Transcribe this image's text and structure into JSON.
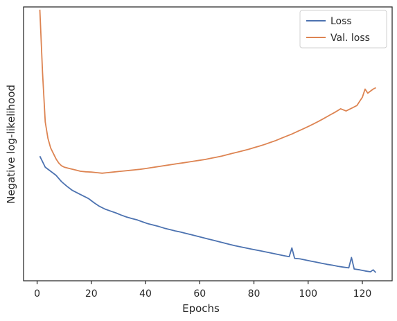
{
  "chart_data": {
    "type": "line",
    "xlabel": "Epochs",
    "ylabel": "Negative log-likelihood",
    "xlim": [
      -5,
      131
    ],
    "ylim": [
      0,
      1
    ],
    "xticks": [
      0,
      20,
      40,
      60,
      80,
      100,
      120
    ],
    "y_tick_labels_shown": false,
    "grid": false,
    "legend_position": "top-right",
    "series": [
      {
        "name": "Loss",
        "color": "#4c72b0",
        "x": [
          1,
          3,
          5,
          7,
          9,
          11,
          13,
          15,
          17,
          19,
          21,
          23,
          25,
          27,
          29,
          31,
          33,
          35,
          37,
          39,
          41,
          43,
          45,
          47,
          49,
          51,
          53,
          55,
          57,
          59,
          61,
          63,
          65,
          67,
          69,
          71,
          73,
          75,
          77,
          79,
          81,
          83,
          85,
          87,
          89,
          91,
          93,
          94,
          95,
          97,
          99,
          101,
          103,
          105,
          107,
          109,
          111,
          113,
          115,
          116,
          117,
          119,
          121,
          123,
          124,
          125
        ],
        "y": [
          0.455,
          0.415,
          0.4,
          0.385,
          0.362,
          0.345,
          0.33,
          0.32,
          0.31,
          0.3,
          0.285,
          0.272,
          0.262,
          0.255,
          0.248,
          0.24,
          0.233,
          0.227,
          0.222,
          0.215,
          0.208,
          0.203,
          0.198,
          0.192,
          0.187,
          0.182,
          0.178,
          0.173,
          0.168,
          0.163,
          0.158,
          0.153,
          0.148,
          0.143,
          0.138,
          0.133,
          0.128,
          0.124,
          0.12,
          0.116,
          0.112,
          0.108,
          0.104,
          0.1,
          0.096,
          0.092,
          0.088,
          0.12,
          0.082,
          0.08,
          0.076,
          0.072,
          0.068,
          0.064,
          0.06,
          0.057,
          0.053,
          0.05,
          0.047,
          0.085,
          0.043,
          0.04,
          0.036,
          0.033,
          0.04,
          0.03
        ]
      },
      {
        "name": "Val. loss",
        "color": "#dd8452",
        "x": [
          1,
          2,
          3,
          4,
          5,
          6,
          7,
          8,
          9,
          10,
          12,
          14,
          16,
          18,
          20,
          22,
          24,
          26,
          28,
          30,
          32,
          34,
          36,
          38,
          40,
          42,
          44,
          46,
          48,
          50,
          52,
          54,
          56,
          58,
          60,
          62,
          64,
          66,
          68,
          70,
          72,
          74,
          76,
          78,
          80,
          82,
          84,
          86,
          88,
          90,
          92,
          94,
          96,
          98,
          100,
          102,
          104,
          106,
          108,
          110,
          112,
          114,
          116,
          118,
          120,
          121,
          122,
          124,
          125
        ],
        "y": [
          0.99,
          0.76,
          0.58,
          0.52,
          0.485,
          0.465,
          0.445,
          0.43,
          0.42,
          0.415,
          0.41,
          0.405,
          0.4,
          0.398,
          0.397,
          0.395,
          0.393,
          0.395,
          0.397,
          0.399,
          0.401,
          0.403,
          0.405,
          0.407,
          0.41,
          0.413,
          0.416,
          0.419,
          0.422,
          0.425,
          0.428,
          0.431,
          0.434,
          0.437,
          0.44,
          0.443,
          0.447,
          0.451,
          0.455,
          0.46,
          0.465,
          0.47,
          0.475,
          0.48,
          0.486,
          0.492,
          0.498,
          0.505,
          0.512,
          0.52,
          0.528,
          0.536,
          0.545,
          0.554,
          0.563,
          0.573,
          0.583,
          0.594,
          0.605,
          0.616,
          0.628,
          0.62,
          0.63,
          0.64,
          0.67,
          0.7,
          0.685,
          0.7,
          0.705
        ]
      }
    ]
  }
}
